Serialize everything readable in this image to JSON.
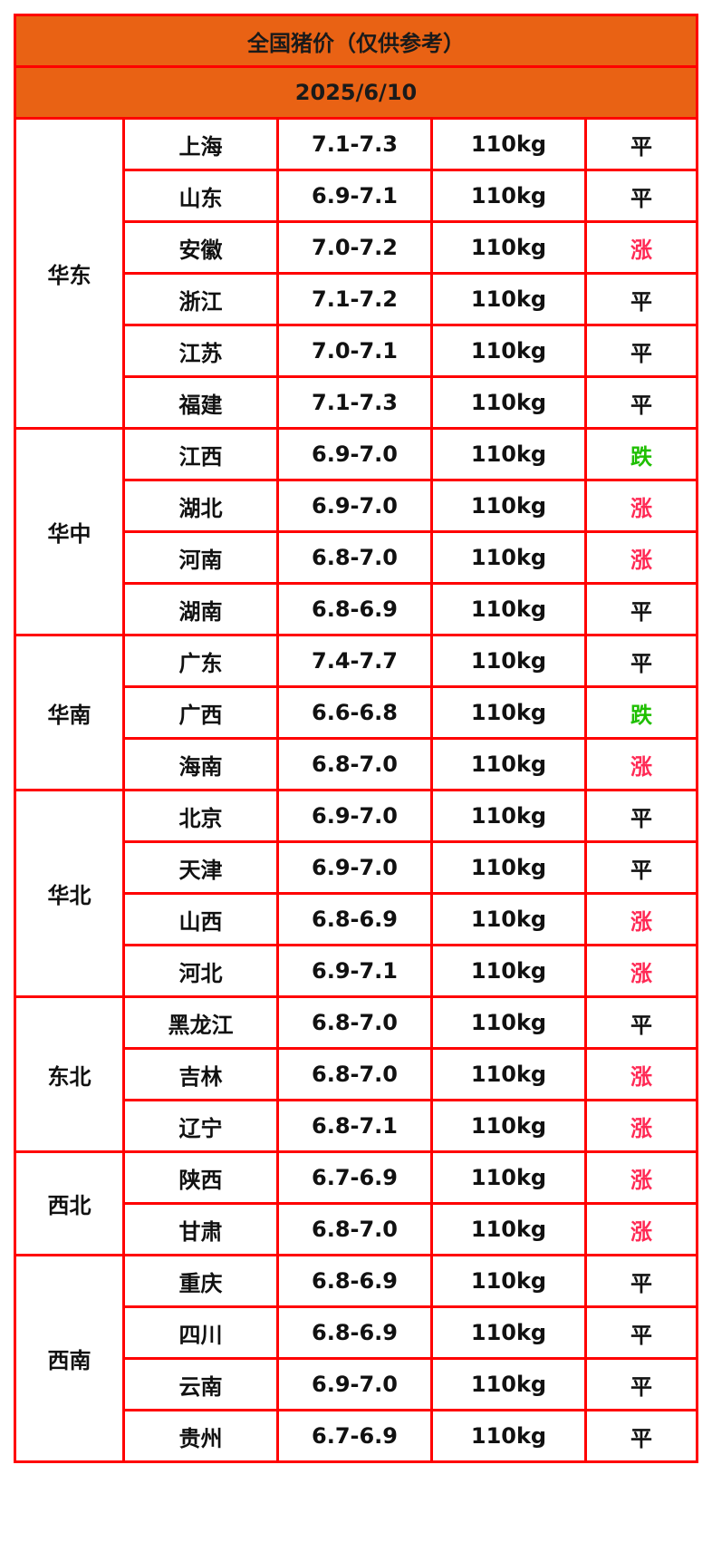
{
  "title": "全国猪价（仅供参考）",
  "date": "2025/6/10",
  "colors": {
    "header_bg": "#e96214",
    "border": "#ff0000",
    "up": "#ff2a55",
    "down": "#1fbf00",
    "flat": "#111111"
  },
  "regions": [
    {
      "name": "华东",
      "rows": [
        {
          "province": "上海",
          "price": "7.1-7.3",
          "weight": "110kg",
          "trend": "平"
        },
        {
          "province": "山东",
          "price": "6.9-7.1",
          "weight": "110kg",
          "trend": "平"
        },
        {
          "province": "安徽",
          "price": "7.0-7.2",
          "weight": "110kg",
          "trend": "涨"
        },
        {
          "province": "浙江",
          "price": "7.1-7.2",
          "weight": "110kg",
          "trend": "平"
        },
        {
          "province": "江苏",
          "price": "7.0-7.1",
          "weight": "110kg",
          "trend": "平"
        },
        {
          "province": "福建",
          "price": "7.1-7.3",
          "weight": "110kg",
          "trend": "平"
        }
      ]
    },
    {
      "name": "华中",
      "rows": [
        {
          "province": "江西",
          "price": "6.9-7.0",
          "weight": "110kg",
          "trend": "跌"
        },
        {
          "province": "湖北",
          "price": "6.9-7.0",
          "weight": "110kg",
          "trend": "涨"
        },
        {
          "province": "河南",
          "price": "6.8-7.0",
          "weight": "110kg",
          "trend": "涨"
        },
        {
          "province": "湖南",
          "price": "6.8-6.9",
          "weight": "110kg",
          "trend": "平"
        }
      ]
    },
    {
      "name": "华南",
      "rows": [
        {
          "province": "广东",
          "price": "7.4-7.7",
          "weight": "110kg",
          "trend": "平"
        },
        {
          "province": "广西",
          "price": "6.6-6.8",
          "weight": "110kg",
          "trend": "跌"
        },
        {
          "province": "海南",
          "price": "6.8-7.0",
          "weight": "110kg",
          "trend": "涨"
        }
      ]
    },
    {
      "name": "华北",
      "rows": [
        {
          "province": "北京",
          "price": "6.9-7.0",
          "weight": "110kg",
          "trend": "平"
        },
        {
          "province": "天津",
          "price": "6.9-7.0",
          "weight": "110kg",
          "trend": "平"
        },
        {
          "province": "山西",
          "price": "6.8-6.9",
          "weight": "110kg",
          "trend": "涨"
        },
        {
          "province": "河北",
          "price": "6.9-7.1",
          "weight": "110kg",
          "trend": "涨"
        }
      ]
    },
    {
      "name": "东北",
      "rows": [
        {
          "province": "黑龙江",
          "price": "6.8-7.0",
          "weight": "110kg",
          "trend": "平"
        },
        {
          "province": "吉林",
          "price": "6.8-7.0",
          "weight": "110kg",
          "trend": "涨"
        },
        {
          "province": "辽宁",
          "price": "6.8-7.1",
          "weight": "110kg",
          "trend": "涨"
        }
      ]
    },
    {
      "name": "西北",
      "rows": [
        {
          "province": "陕西",
          "price": "6.7-6.9",
          "weight": "110kg",
          "trend": "涨"
        },
        {
          "province": "甘肃",
          "price": "6.8-7.0",
          "weight": "110kg",
          "trend": "涨"
        }
      ]
    },
    {
      "name": "西南",
      "rows": [
        {
          "province": "重庆",
          "price": "6.8-6.9",
          "weight": "110kg",
          "trend": "平"
        },
        {
          "province": "四川",
          "price": "6.8-6.9",
          "weight": "110kg",
          "trend": "平"
        },
        {
          "province": "云南",
          "price": "6.9-7.0",
          "weight": "110kg",
          "trend": "平"
        },
        {
          "province": "贵州",
          "price": "6.7-6.9",
          "weight": "110kg",
          "trend": "平"
        }
      ]
    }
  ]
}
